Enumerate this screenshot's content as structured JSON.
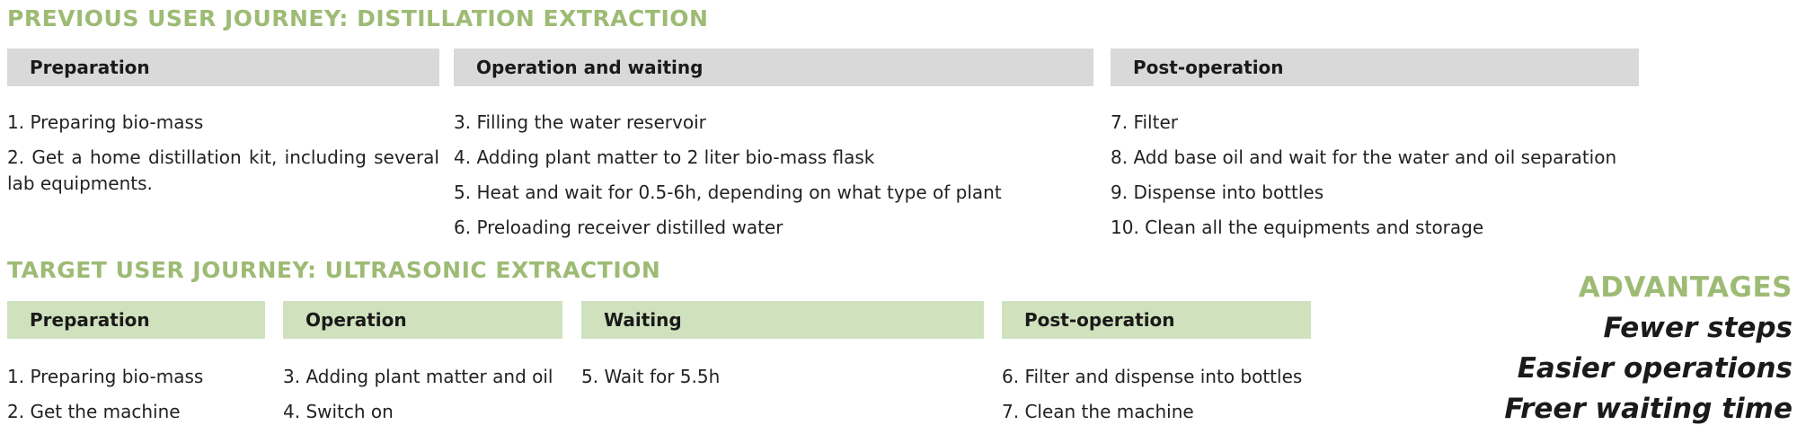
{
  "previous": {
    "title": "PREVIOUS USER JOURNEY: DISTILLATION EXTRACTION",
    "stages": [
      {
        "header": "Preparation",
        "steps": [
          "1. Preparing bio-mass",
          "2. Get a home distillation kit, including several lab equipments."
        ]
      },
      {
        "header": "Operation and waiting",
        "steps": [
          "3. Filling the water reservoir",
          "4. Adding plant matter to 2 liter bio-mass flask",
          "5. Heat and wait for 0.5-6h, depending on what type of plant",
          "6. Preloading receiver distilled water"
        ]
      },
      {
        "header": "Post-operation",
        "steps": [
          "7. Filter",
          "8. Add base oil and wait for the water and oil separation",
          "9. Dispense into bottles",
          "10. Clean all the equipments and storage"
        ]
      }
    ]
  },
  "target": {
    "title": "TARGET USER JOURNEY: ULTRASONIC EXTRACTION",
    "stages": [
      {
        "header": "Preparation",
        "steps": [
          "1. Preparing bio-mass",
          "2. Get the machine"
        ]
      },
      {
        "header": "Operation",
        "steps": [
          "3. Adding plant matter and oil",
          "4. Switch on"
        ]
      },
      {
        "header": "Waiting",
        "steps": [
          "5. Wait for 5.5h"
        ]
      },
      {
        "header": "Post-operation",
        "steps": [
          "6. Filter and dispense into bottles",
          "7. Clean the machine"
        ]
      }
    ]
  },
  "advantages": {
    "title": "ADVANTAGES",
    "items": [
      "Fewer steps",
      "Easier operations",
      "Freer waiting time"
    ]
  },
  "colors": {
    "accent_green": "#9dbb74",
    "previous_header_bg": "#d9d9d9",
    "target_header_bg": "#cfe2bd",
    "text": "#222222"
  }
}
